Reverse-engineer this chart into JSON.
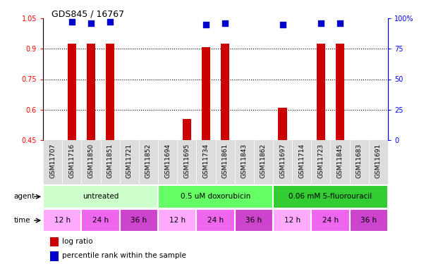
{
  "title": "GDS845 / 16767",
  "samples": [
    "GSM11707",
    "GSM11716",
    "GSM11850",
    "GSM11851",
    "GSM11721",
    "GSM11852",
    "GSM11694",
    "GSM11695",
    "GSM11734",
    "GSM11861",
    "GSM11843",
    "GSM11862",
    "GSM11697",
    "GSM11714",
    "GSM11723",
    "GSM11845",
    "GSM11683",
    "GSM11691"
  ],
  "log_ratio": [
    null,
    0.925,
    0.925,
    0.925,
    null,
    null,
    null,
    0.555,
    0.91,
    0.925,
    null,
    null,
    0.61,
    null,
    0.925,
    0.925,
    null,
    null
  ],
  "percentile_rank_pct": [
    null,
    97,
    96,
    97,
    null,
    null,
    null,
    null,
    95,
    96,
    null,
    null,
    95,
    null,
    96,
    96,
    null,
    null
  ],
  "bar_color": "#cc0000",
  "dot_color": "#0000cc",
  "ylim_left": [
    0.45,
    1.05
  ],
  "ylim_right": [
    0,
    100
  ],
  "yticks_left": [
    0.45,
    0.6,
    0.75,
    0.9,
    1.05
  ],
  "yticks_right": [
    0,
    25,
    50,
    75,
    100
  ],
  "grid_values": [
    0.9,
    0.75,
    0.6
  ],
  "agent_groups": [
    {
      "label": "untreated",
      "start": 0,
      "end": 6,
      "color": "#ccffcc"
    },
    {
      "label": "0.5 uM doxorubicin",
      "start": 6,
      "end": 12,
      "color": "#66ff66"
    },
    {
      "label": "0.06 mM 5-fluorouracil",
      "start": 12,
      "end": 18,
      "color": "#33cc33"
    }
  ],
  "time_groups": [
    {
      "label": "12 h",
      "start": 0,
      "end": 2,
      "color": "#ffaaff"
    },
    {
      "label": "24 h",
      "start": 2,
      "end": 4,
      "color": "#ee66ee"
    },
    {
      "label": "36 h",
      "start": 4,
      "end": 6,
      "color": "#cc44cc"
    },
    {
      "label": "12 h",
      "start": 6,
      "end": 8,
      "color": "#ffaaff"
    },
    {
      "label": "24 h",
      "start": 8,
      "end": 10,
      "color": "#ee66ee"
    },
    {
      "label": "36 h",
      "start": 10,
      "end": 12,
      "color": "#cc44cc"
    },
    {
      "label": "12 h",
      "start": 12,
      "end": 14,
      "color": "#ffaaff"
    },
    {
      "label": "24 h",
      "start": 14,
      "end": 16,
      "color": "#ee66ee"
    },
    {
      "label": "36 h",
      "start": 16,
      "end": 18,
      "color": "#cc44cc"
    }
  ],
  "bar_width": 0.45,
  "dot_size": 35,
  "background_color": "#ffffff",
  "legend_red_label": "log ratio",
  "legend_blue_label": "percentile rank within the sample"
}
